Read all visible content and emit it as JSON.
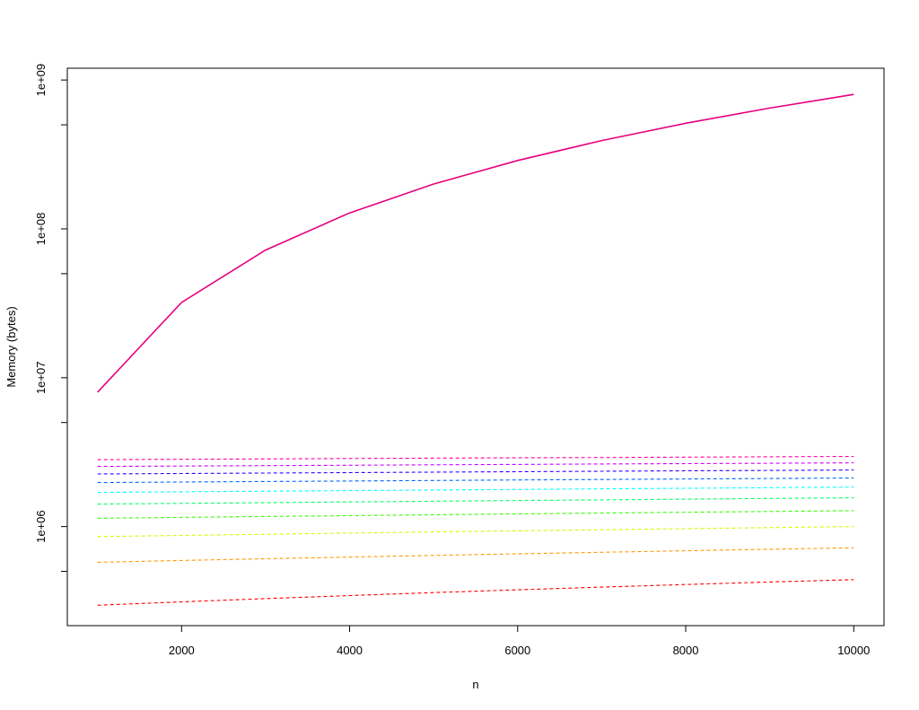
{
  "chart_data": {
    "type": "line",
    "title": "",
    "xlabel": "n",
    "ylabel": "Memory (bytes)",
    "y_scale": "log",
    "grid": false,
    "legend": "none",
    "xlim": [
      640,
      10360
    ],
    "ylim": [
      216000,
      1200000000
    ],
    "x_ticks": [
      {
        "value": 2000,
        "label": "2000"
      },
      {
        "value": 4000,
        "label": "4000"
      },
      {
        "value": 6000,
        "label": "6000"
      },
      {
        "value": 8000,
        "label": "8000"
      },
      {
        "value": 10000,
        "label": "10000"
      }
    ],
    "y_ticks": [
      {
        "value": 1000000,
        "label": "1e+06"
      },
      {
        "value": 10000000,
        "label": "1e+07"
      },
      {
        "value": 100000000,
        "label": "1e+08"
      },
      {
        "value": 1000000000,
        "label": "1e+09"
      }
    ],
    "y_minor_ticks": [
      500000,
      5000000,
      50000000,
      500000000
    ],
    "x": [
      1000,
      2000,
      3000,
      4000,
      5000,
      6000,
      7000,
      8000,
      9000,
      10000
    ],
    "series": [
      {
        "color": "#e6007e",
        "style": "solid",
        "values": [
          8000000,
          32000000,
          72000000,
          128000000,
          200000000,
          288000000,
          392000000,
          512000000,
          648000000,
          800000000
        ]
      },
      {
        "color": "#ff0000",
        "style": "dashed",
        "values": [
          296000,
          312000,
          328000,
          344000,
          360000,
          376000,
          392000,
          408000,
          424000,
          440000
        ]
      },
      {
        "color": "#ff9900",
        "style": "dashed",
        "values": [
          576000,
          592000,
          608000,
          624000,
          640000,
          656000,
          672000,
          688000,
          704000,
          720000
        ]
      },
      {
        "color": "#ccff00",
        "style": "dashed",
        "values": [
          856000,
          872000,
          888000,
          904000,
          920000,
          936000,
          952000,
          968000,
          984000,
          1000000
        ]
      },
      {
        "color": "#33ff00",
        "style": "dashed",
        "values": [
          1136000,
          1152000,
          1168000,
          1184000,
          1200000,
          1216000,
          1232000,
          1248000,
          1264000,
          1280000
        ]
      },
      {
        "color": "#00ff66",
        "style": "dashed",
        "values": [
          1416000,
          1432000,
          1448000,
          1464000,
          1480000,
          1496000,
          1512000,
          1528000,
          1544000,
          1560000
        ]
      },
      {
        "color": "#00ffff",
        "style": "dashed",
        "values": [
          1696000,
          1712000,
          1728000,
          1744000,
          1760000,
          1776000,
          1792000,
          1808000,
          1824000,
          1840000
        ]
      },
      {
        "color": "#0066ff",
        "style": "dashed",
        "values": [
          1976000,
          1992000,
          2008000,
          2024000,
          2040000,
          2056000,
          2072000,
          2088000,
          2104000,
          2120000
        ]
      },
      {
        "color": "#3300ff",
        "style": "dashed",
        "values": [
          2256000,
          2272000,
          2288000,
          2304000,
          2320000,
          2336000,
          2352000,
          2368000,
          2384000,
          2400000
        ]
      },
      {
        "color": "#cc00ff",
        "style": "dashed",
        "values": [
          2536000,
          2552000,
          2568000,
          2584000,
          2600000,
          2616000,
          2632000,
          2648000,
          2664000,
          2680000
        ]
      },
      {
        "color": "#ff0099",
        "style": "dashed",
        "values": [
          2816000,
          2832000,
          2848000,
          2864000,
          2880000,
          2896000,
          2912000,
          2928000,
          2944000,
          2960000
        ]
      }
    ]
  }
}
